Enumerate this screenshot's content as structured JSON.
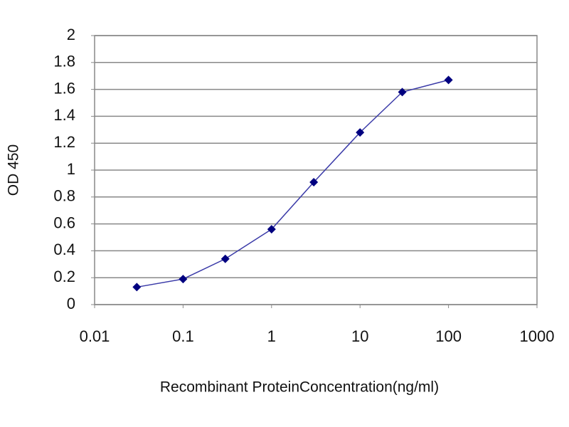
{
  "chart_data": {
    "type": "line",
    "y_label": "OD 450",
    "x_label": "Recombinant ProteinConcentration(ng/ml)",
    "x": [
      0.03,
      0.1,
      0.3,
      1,
      3,
      10,
      30,
      100
    ],
    "values": [
      0.13,
      0.19,
      0.34,
      0.56,
      0.91,
      1.28,
      1.58,
      1.67
    ],
    "color": "#3a3aa8",
    "marker_color": "#000080",
    "xscale": "log",
    "xlim": [
      0.01,
      1000
    ],
    "xticks": [
      0.01,
      0.1,
      1,
      10,
      100,
      1000
    ],
    "ylim": [
      0,
      2
    ],
    "yticks": [
      0,
      0.2,
      0.4,
      0.6,
      0.8,
      1,
      1.2,
      1.4,
      1.6,
      1.8,
      2
    ],
    "grid": true
  }
}
